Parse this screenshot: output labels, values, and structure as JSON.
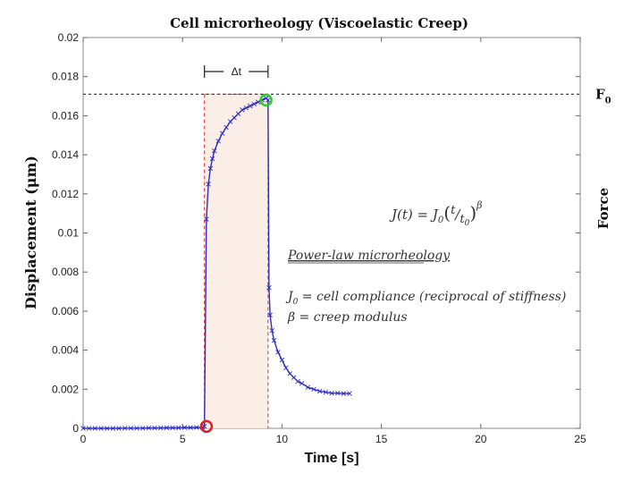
{
  "chart_data": {
    "type": "line",
    "title": "Cell microrheology (Viscoelastic Creep)",
    "xlabel": "Time [s]",
    "ylabel": "Displacement (μm)",
    "right_label": "Force",
    "force_level_label": "F",
    "force_level_subscript": "0",
    "force_level_value": 0.0171,
    "interval_label": "Δt",
    "interval": [
      6.1,
      9.3
    ],
    "xlim": [
      0,
      25
    ],
    "ylim": [
      0,
      0.02
    ],
    "xticks": [
      0,
      5,
      10,
      15,
      20,
      25
    ],
    "yticks": [
      0,
      0.002,
      0.004,
      0.006,
      0.008,
      0.01,
      0.012,
      0.014,
      0.016,
      0.018,
      0.02
    ],
    "ytick_labels": [
      "0",
      "0.002",
      "0.004",
      "0.006",
      "0.008",
      "0.01",
      "0.012",
      "0.014",
      "0.016",
      "0.018",
      "0.02"
    ],
    "grid": false,
    "series": [
      {
        "name": "displacement",
        "color": "#2b2bc8",
        "marker": "x",
        "x": [
          0,
          0.3,
          0.6,
          0.9,
          1.2,
          1.5,
          1.8,
          2.1,
          2.4,
          2.7,
          3.0,
          3.3,
          3.6,
          3.9,
          4.2,
          4.5,
          4.8,
          5.1,
          5.4,
          5.7,
          6.0,
          6.1,
          6.2,
          6.3,
          6.4,
          6.5,
          6.6,
          6.8,
          7.0,
          7.2,
          7.4,
          7.6,
          7.8,
          8.0,
          8.2,
          8.4,
          8.6,
          8.8,
          9.0,
          9.2,
          9.3,
          9.35,
          9.4,
          9.5,
          9.6,
          9.8,
          10.0,
          10.2,
          10.4,
          10.6,
          10.8,
          11.0,
          11.3,
          11.6,
          11.9,
          12.2,
          12.5,
          12.8,
          13.1,
          13.4
        ],
        "values": [
          0.0,
          0.0,
          0.0,
          0.0,
          0.0,
          0.0,
          0.0,
          1e-05,
          1e-05,
          1e-05,
          1e-05,
          2e-05,
          2e-05,
          2e-05,
          3e-05,
          3e-05,
          3e-05,
          4e-05,
          4e-05,
          5e-05,
          5e-05,
          0.0001,
          0.0107,
          0.0125,
          0.0133,
          0.0138,
          0.0142,
          0.0147,
          0.0151,
          0.0154,
          0.0157,
          0.0159,
          0.0161,
          0.0163,
          0.0164,
          0.0165,
          0.0166,
          0.0167,
          0.0168,
          0.0169,
          0.0168,
          0.0072,
          0.0058,
          0.005,
          0.0045,
          0.0039,
          0.0035,
          0.0031,
          0.0028,
          0.0026,
          0.0024,
          0.0023,
          0.0021,
          0.002,
          0.0019,
          0.00185,
          0.0018,
          0.0018,
          0.00178,
          0.00178
        ]
      }
    ],
    "markers": [
      {
        "name": "force-on-marker",
        "x": 6.2,
        "y": 0.0001,
        "color": "#e02020"
      },
      {
        "name": "force-off-marker",
        "x": 9.2,
        "y": 0.0168,
        "color": "#2ecc2e"
      }
    ],
    "annotations": {
      "equation_lhs": "J(t) = J",
      "equation_sub0": "0",
      "equation_open": "(",
      "equation_t": "t",
      "equation_slash": "/",
      "equation_t0": "t",
      "equation_t0_sub": "0",
      "equation_close": ")",
      "equation_exp": "β",
      "model_heading": "Power-law microrheology",
      "def1_sym": "J",
      "def1_sub": "0",
      "def1_text": " = cell compliance (reciprocal of stiffness)",
      "def2": "β = creep modulus"
    }
  }
}
